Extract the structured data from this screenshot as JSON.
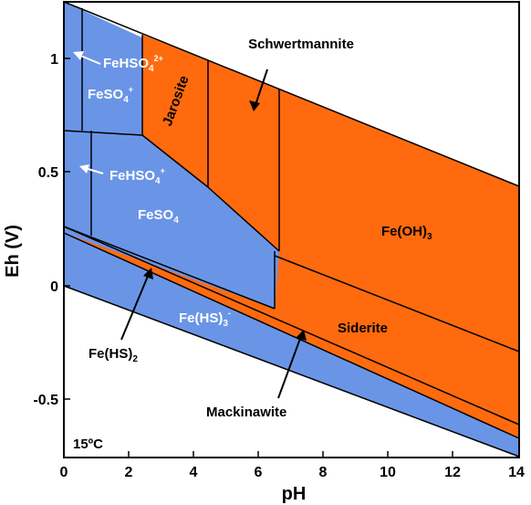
{
  "colors": {
    "aqueous": "#6a95e6",
    "solid": "#ff6a0e",
    "line": "#000000"
  },
  "axes": {
    "xlabel": "pH",
    "ylabel": "Eh (V)",
    "xticks": [
      "0",
      "2",
      "4",
      "6",
      "8",
      "10",
      "12",
      "14"
    ],
    "yticks": [
      "1",
      "0.5",
      "0",
      "-0.5"
    ]
  },
  "temperature": "15ºC",
  "labels": {
    "fehso4_2plus": {
      "base": "FeHSO",
      "sub": "4",
      "sup": "2+"
    },
    "feso4_plus": {
      "base": "FeSO",
      "sub": "4",
      "sup": "+"
    },
    "fehso4_plus": {
      "base": "FeHSO",
      "sub": "4",
      "sup": "+"
    },
    "feso4": {
      "base": "FeSO",
      "sub": "4"
    },
    "jarosite": "Jarosite",
    "schwertmannite": "Schwertmannite",
    "feoh3": {
      "base": "Fe(OH)",
      "sub": "3"
    },
    "siderite": "Siderite",
    "fehs3": {
      "base": "Fe(HS)",
      "sub": "3",
      "sup": "-"
    },
    "fehs2": {
      "base": "Fe(HS)",
      "sub": "2"
    },
    "mackinawite": "Mackinawite"
  }
}
